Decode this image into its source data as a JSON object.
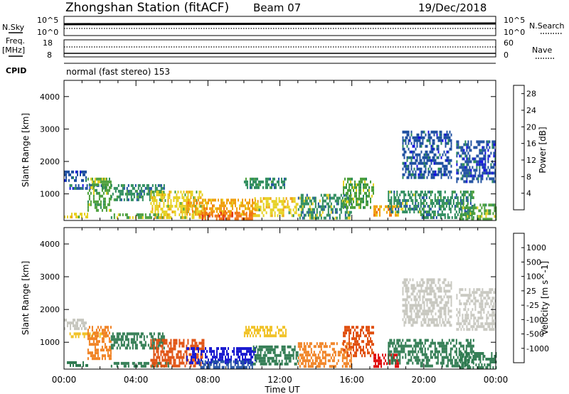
{
  "header": {
    "station": "Zhongshan Station (fitACF)",
    "beam": "Beam 07",
    "date": "19/Dec/2018"
  },
  "noise_panel": {
    "left_label": "N.Sky",
    "left_ticks": [
      "10^5",
      "10^0"
    ],
    "right_label": "N.Search",
    "right_ticks": [
      "10^5",
      "10^0"
    ]
  },
  "freq_panel": {
    "left_label_1": "Freq.",
    "left_label_2": "[MHz]",
    "left_ticks": [
      "18",
      "8"
    ],
    "right_label": "Nave",
    "right_ticks": [
      "60",
      "0"
    ],
    "cpid_label": "CPID",
    "cpid_text": "normal (fast stereo) 153"
  },
  "colors": {
    "power": [
      "#1010e0",
      "#1e4fa0",
      "#2a8a5a",
      "#4a9e3a",
      "#e6d020",
      "#f0a010",
      "#f07010",
      "#e02010"
    ],
    "velocity": [
      "#1a1ad0",
      "#2050a0",
      "#2e7a50",
      "#7ab84a",
      "#c8c8c0",
      "#f0c020",
      "#f08020",
      "#e05010",
      "#e01010"
    ]
  },
  "chart_data": [
    {
      "type": "heatmap",
      "title": "Power",
      "ylabel": "Slant Range [km]",
      "xlabel": "Time UT",
      "x_range_hours": [
        0,
        24
      ],
      "ylim": [
        180,
        4500
      ],
      "yticks": [
        "1000",
        "2000",
        "3000",
        "4000"
      ],
      "xticks": [
        "00:00",
        "04:00",
        "08:00",
        "12:00",
        "16:00",
        "20:00",
        "00:00"
      ],
      "colorbar_label": "Power [dB]",
      "colorbar_ticks": [
        "4",
        "8",
        "12",
        "16",
        "20",
        "24",
        "28"
      ],
      "colorbar_range": [
        0,
        30
      ],
      "regions": [
        {
          "t0": 0.0,
          "t1": 1.3,
          "r0": 250,
          "r1": 420,
          "level": 18
        },
        {
          "t0": 0.0,
          "t1": 1.2,
          "r0": 1450,
          "r1": 1720,
          "level": 6
        },
        {
          "t0": 0.3,
          "t1": 2.4,
          "r0": 1150,
          "r1": 1300,
          "level": 7
        },
        {
          "t0": 1.3,
          "t1": 2.6,
          "r0": 500,
          "r1": 1500,
          "level": 12
        },
        {
          "t0": 2.6,
          "t1": 5.6,
          "r0": 800,
          "r1": 1300,
          "level": 9
        },
        {
          "t0": 2.6,
          "t1": 5.8,
          "r0": 250,
          "r1": 400,
          "level": 14
        },
        {
          "t0": 4.8,
          "t1": 7.8,
          "r0": 280,
          "r1": 1100,
          "level": 18
        },
        {
          "t0": 6.8,
          "t1": 10.6,
          "r0": 400,
          "r1": 850,
          "level": 20
        },
        {
          "t0": 7.5,
          "t1": 10.5,
          "r0": 200,
          "r1": 450,
          "level": 26
        },
        {
          "t0": 10.5,
          "t1": 13.0,
          "r0": 300,
          "r1": 900,
          "level": 15
        },
        {
          "t0": 10.0,
          "t1": 12.3,
          "r0": 1200,
          "r1": 1500,
          "level": 8
        },
        {
          "t0": 13.0,
          "t1": 16.0,
          "r0": 250,
          "r1": 1000,
          "level": 11
        },
        {
          "t0": 15.5,
          "t1": 17.2,
          "r0": 550,
          "r1": 1500,
          "level": 14
        },
        {
          "t0": 17.2,
          "t1": 18.6,
          "r0": 300,
          "r1": 650,
          "level": 22
        },
        {
          "t0": 18.0,
          "t1": 19.8,
          "r0": 400,
          "r1": 1100,
          "level": 11
        },
        {
          "t0": 18.8,
          "t1": 21.5,
          "r0": 1500,
          "r1": 2950,
          "level": 6
        },
        {
          "t0": 19.8,
          "t1": 22.8,
          "r0": 250,
          "r1": 1100,
          "level": 10
        },
        {
          "t0": 21.8,
          "t1": 24.0,
          "r0": 1400,
          "r1": 2650,
          "level": 6
        },
        {
          "t0": 22.0,
          "t1": 24.0,
          "r0": 250,
          "r1": 700,
          "level": 14
        }
      ]
    },
    {
      "type": "heatmap",
      "title": "Velocity",
      "ylabel": "Slant Range [km]",
      "xlabel": "Time UT",
      "x_range_hours": [
        0,
        24
      ],
      "ylim": [
        180,
        4500
      ],
      "yticks": [
        "1000",
        "2000",
        "3000",
        "4000"
      ],
      "xticks": [
        "00:00",
        "04:00",
        "08:00",
        "12:00",
        "16:00",
        "20:00",
        "00:00"
      ],
      "colorbar_label": "Velocity [m s^-1]",
      "colorbar_ticks": [
        "1000",
        "500",
        "100",
        "25",
        "-25",
        "-100",
        "-500",
        "-1000"
      ],
      "regions": [
        {
          "t0": 0.0,
          "t1": 1.3,
          "r0": 250,
          "r1": 420,
          "v": 200
        },
        {
          "t0": 0.0,
          "t1": 1.2,
          "r0": 1450,
          "r1": 1720,
          "v": 0
        },
        {
          "t0": 0.3,
          "t1": 2.4,
          "r0": 1150,
          "r1": 1300,
          "v": -80
        },
        {
          "t0": 1.3,
          "t1": 2.6,
          "r0": 500,
          "r1": 1500,
          "v": -300
        },
        {
          "t0": 2.6,
          "t1": 5.6,
          "r0": 800,
          "r1": 1300,
          "v": 80
        },
        {
          "t0": 2.6,
          "t1": 5.8,
          "r0": 250,
          "r1": 400,
          "v": 150
        },
        {
          "t0": 4.8,
          "t1": 7.8,
          "r0": 280,
          "r1": 1100,
          "v": -400
        },
        {
          "t0": 6.8,
          "t1": 10.6,
          "r0": 400,
          "r1": 850,
          "v": 800
        },
        {
          "t0": 7.5,
          "t1": 10.5,
          "r0": 200,
          "r1": 450,
          "v": 300
        },
        {
          "t0": 10.5,
          "t1": 13.0,
          "r0": 300,
          "r1": 900,
          "v": 200
        },
        {
          "t0": 10.0,
          "t1": 12.3,
          "r0": 1200,
          "r1": 1500,
          "v": -60
        },
        {
          "t0": 13.0,
          "t1": 16.0,
          "r0": 250,
          "r1": 1000,
          "v": -300
        },
        {
          "t0": 15.5,
          "t1": 17.2,
          "r0": 550,
          "r1": 1500,
          "v": -600
        },
        {
          "t0": 17.2,
          "t1": 18.6,
          "r0": 300,
          "r1": 650,
          "v": -800
        },
        {
          "t0": 18.0,
          "t1": 19.8,
          "r0": 400,
          "r1": 1100,
          "v": 150
        },
        {
          "t0": 18.8,
          "t1": 21.5,
          "r0": 1500,
          "r1": 2950,
          "v": 0
        },
        {
          "t0": 19.8,
          "t1": 22.8,
          "r0": 250,
          "r1": 1100,
          "v": 150
        },
        {
          "t0": 21.8,
          "t1": 24.0,
          "r0": 1400,
          "r1": 2650,
          "v": 5
        },
        {
          "t0": 22.0,
          "t1": 24.0,
          "r0": 250,
          "r1": 700,
          "v": 200
        }
      ]
    }
  ]
}
